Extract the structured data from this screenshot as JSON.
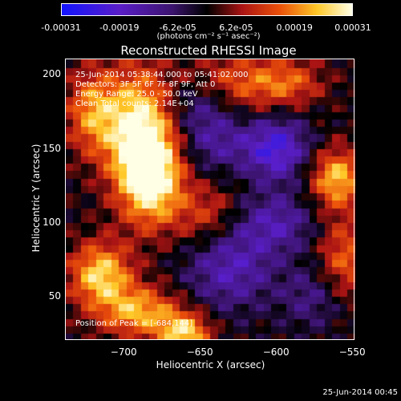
{
  "chart_data": {
    "type": "heatmap",
    "title": "Reconstructed RHESSI Image",
    "xlabel": "Heliocentric X (arcsec)",
    "ylabel": "Heliocentric Y (arcsec)",
    "xlim": [
      -738,
      -548
    ],
    "ylim": [
      20,
      210
    ],
    "x_ticks": [
      -700,
      -650,
      -600,
      -550
    ],
    "y_ticks": [
      50,
      100,
      150,
      200
    ],
    "x_tick_labels": [
      "−700",
      "−650",
      "−600",
      "−550"
    ],
    "y_tick_labels": [
      "50",
      "100",
      "150",
      "200"
    ],
    "colorbar": {
      "min": -0.00031,
      "max": 0.00031,
      "tick_labels": [
        "-0.00031",
        "-0.00019",
        "-6.2e-05",
        "6.2e-05",
        "0.00019",
        "0.00031"
      ],
      "units": "(photons cm⁻² s⁻¹ asec⁻²)"
    },
    "grid": false,
    "peak_position": [
      -684,
      144
    ],
    "sources": [
      {
        "x": -690,
        "y": 160,
        "sx": 15,
        "sy": 30,
        "amp": 0.00031
      },
      {
        "x": -680,
        "y": 130,
        "sx": 14,
        "sy": 22,
        "amp": 0.00026
      },
      {
        "x": -720,
        "y": 175,
        "sx": 12,
        "sy": 20,
        "amp": 0.0002
      },
      {
        "x": -715,
        "y": 65,
        "sx": 14,
        "sy": 15,
        "amp": 0.00026
      },
      {
        "x": -690,
        "y": 40,
        "sx": 18,
        "sy": 12,
        "amp": 0.00022
      },
      {
        "x": -660,
        "y": 25,
        "sx": 12,
        "sy": 10,
        "amp": 0.00026
      },
      {
        "x": -645,
        "y": 105,
        "sx": 15,
        "sy": 15,
        "amp": 0.00012
      },
      {
        "x": -620,
        "y": 195,
        "sx": 25,
        "sy": 14,
        "amp": 0.00015
      },
      {
        "x": -560,
        "y": 130,
        "sx": 12,
        "sy": 14,
        "amp": 0.00024
      },
      {
        "x": -555,
        "y": 75,
        "sx": 12,
        "sy": 20,
        "amp": 0.00016
      },
      {
        "x": -590,
        "y": 195,
        "sx": 15,
        "sy": 10,
        "amp": 0.0001
      },
      {
        "x": -640,
        "y": 155,
        "sx": 16,
        "sy": 14,
        "amp": -0.00012
      },
      {
        "x": -600,
        "y": 150,
        "sx": 15,
        "sy": 15,
        "amp": -0.00022
      },
      {
        "x": -630,
        "y": 70,
        "sx": 20,
        "sy": 20,
        "amp": -0.00016
      },
      {
        "x": -600,
        "y": 100,
        "sx": 18,
        "sy": 14,
        "amp": -0.00014
      },
      {
        "x": -650,
        "y": 180,
        "sx": 15,
        "sy": 12,
        "amp": -0.0001
      },
      {
        "x": -575,
        "y": 50,
        "sx": 15,
        "sy": 15,
        "amp": -0.0001
      }
    ]
  },
  "annotations": {
    "time_range": "25-Jun-2014 05:38:44.000 to 05:41:02.000",
    "detectors": "Detectors: 3F 5F 6F 7F 8F 9F, Att 0",
    "energy": "Energy Range: 25.0 - 50.0 keV",
    "clean": "Clean     Total counts: 2.14E+04",
    "peak": "Position of Peak = [-684,144]"
  },
  "timestamp": "25-Jun-2014 00:45"
}
